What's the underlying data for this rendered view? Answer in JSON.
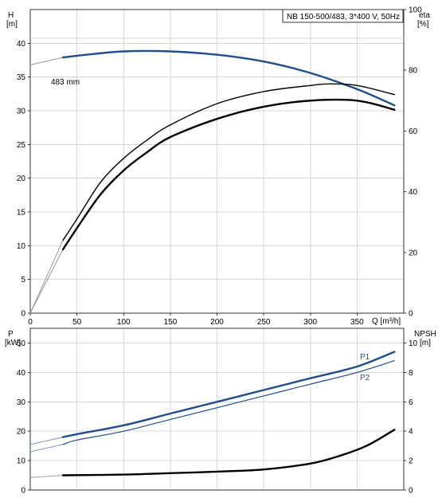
{
  "chart_data": [
    {
      "type": "line",
      "panel": "top",
      "title": "NB 150-500/483, 3*400 V, 50Hz",
      "x_label_text": "Q [m³/h]",
      "left_axis": {
        "name": "H",
        "unit": "[m]",
        "range": [
          0,
          45
        ],
        "ticks": [
          0,
          5,
          10,
          15,
          20,
          25,
          30,
          35,
          40
        ]
      },
      "right_axis": {
        "name": "eta",
        "unit": "[%]",
        "range": [
          0,
          100
        ],
        "ticks": [
          0,
          20,
          40,
          60,
          80,
          100
        ]
      },
      "x_axis": {
        "range": [
          0,
          400
        ],
        "ticks": [
          0,
          50,
          100,
          150,
          200,
          250,
          300,
          350
        ]
      },
      "grid": true,
      "annotation": "483 mm",
      "series": [
        {
          "name": "483 mm",
          "axis": "left",
          "color": "#1f4e8c",
          "x": [
            35,
            60,
            100,
            150,
            200,
            250,
            300,
            350,
            390
          ],
          "y": [
            37.9,
            38.3,
            38.8,
            38.8,
            38.3,
            37.3,
            35.6,
            33.2,
            30.8
          ]
        },
        {
          "axis": "right",
          "color": "#000000",
          "x": [
            35,
            50,
            75,
            100,
            125,
            150,
            200,
            250,
            300,
            320,
            350,
            390
          ],
          "y": [
            24,
            31,
            43,
            51,
            57,
            62,
            69,
            73,
            75,
            75.5,
            75,
            72
          ]
        },
        {
          "axis": "right",
          "color": "#000000",
          "x": [
            35,
            50,
            75,
            100,
            125,
            150,
            200,
            250,
            300,
            350,
            390
          ],
          "y": [
            21,
            28,
            39,
            47,
            53,
            58,
            64,
            68,
            70,
            70,
            67
          ]
        }
      ],
      "ext_series": [
        {
          "axis": "left",
          "color": "#9a9a9a",
          "x": [
            0,
            35
          ],
          "y": [
            36.8,
            37.9
          ]
        },
        {
          "axis": "right",
          "color": "#9a9a9a",
          "x": [
            0,
            35
          ],
          "y": [
            0,
            24
          ]
        },
        {
          "axis": "right",
          "color": "#9a9a9a",
          "x": [
            0,
            35
          ],
          "y": [
            0,
            21
          ]
        }
      ]
    },
    {
      "type": "line",
      "panel": "bottom",
      "left_axis": {
        "name": "P",
        "unit": "[kW]",
        "range": [
          0,
          55
        ],
        "ticks": [
          0,
          10,
          20,
          30,
          40,
          50
        ]
      },
      "right_axis": {
        "name": "NPSH",
        "unit": "[m]",
        "range": [
          0,
          11
        ],
        "ticks": [
          0,
          2,
          4,
          6,
          8,
          10
        ]
      },
      "x_axis": {
        "range": [
          0,
          400
        ]
      },
      "grid": true,
      "series": [
        {
          "name": "P1",
          "axis": "left",
          "color": "#1f4e8c",
          "x": [
            35,
            50,
            100,
            150,
            200,
            250,
            300,
            350,
            390
          ],
          "y": [
            18,
            19,
            22,
            26,
            30,
            34,
            38,
            42,
            47
          ]
        },
        {
          "name": "P2",
          "axis": "left",
          "color": "#1f4e8c",
          "x": [
            35,
            50,
            100,
            150,
            200,
            250,
            300,
            350,
            390
          ],
          "y": [
            15.5,
            17,
            20,
            24,
            28,
            32,
            36,
            40,
            44
          ]
        },
        {
          "axis": "right",
          "color": "#000000",
          "x": [
            35,
            100,
            150,
            200,
            250,
            300,
            330,
            360,
            390
          ],
          "y": [
            1.0,
            1.05,
            1.15,
            1.25,
            1.4,
            1.8,
            2.3,
            3.0,
            4.1
          ]
        }
      ],
      "ext_series": [
        {
          "axis": "left",
          "color": "#7f98c0",
          "x": [
            0,
            35
          ],
          "y": [
            15.5,
            18
          ]
        },
        {
          "axis": "left",
          "color": "#7f98c0",
          "x": [
            0,
            35
          ],
          "y": [
            13,
            15.5
          ]
        },
        {
          "axis": "right",
          "color": "#9a9a9a",
          "x": [
            0,
            35
          ],
          "y": [
            0.85,
            1.0
          ]
        }
      ]
    }
  ]
}
